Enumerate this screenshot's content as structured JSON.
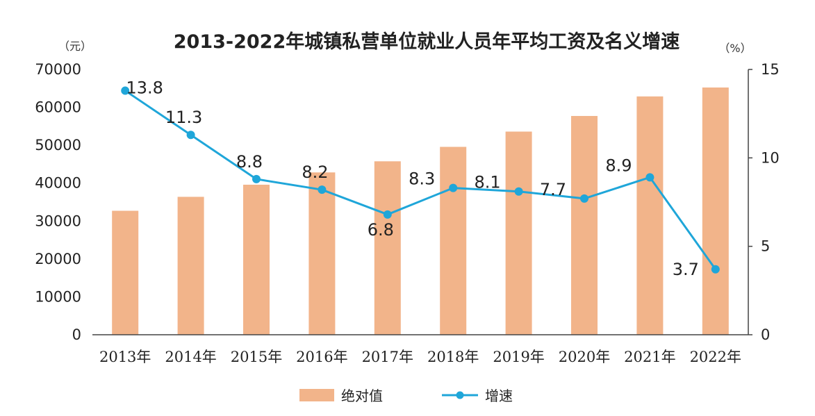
{
  "chart_data": {
    "type": "bar+line",
    "title": "2013-2022年城镇私营单位就业人员年平均工资及名义增速",
    "left_unit": "（元）",
    "right_unit": "（%）",
    "categories": [
      "2013年",
      "2014年",
      "2015年",
      "2016年",
      "2017年",
      "2018年",
      "2019年",
      "2020年",
      "2021年",
      "2022年"
    ],
    "series": [
      {
        "name": "绝对值",
        "type": "bar",
        "axis": "left",
        "color": "#f2b48a",
        "values": [
          32706,
          36390,
          39589,
          42833,
          45761,
          49575,
          53604,
          57727,
          62884,
          65237
        ]
      },
      {
        "name": "增速",
        "type": "line",
        "axis": "right",
        "color": "#1fa6d9",
        "values": [
          13.8,
          11.3,
          8.8,
          8.2,
          6.8,
          8.3,
          8.1,
          7.7,
          8.9,
          3.7
        ],
        "labels": [
          "13.8",
          "11.3",
          "8.8",
          "8.2",
          "6.8",
          "8.3",
          "8.1",
          "7.7",
          "8.9",
          "3.7"
        ]
      }
    ],
    "y_left": {
      "min": 0,
      "max": 70000,
      "ticks": [
        "0",
        "10000",
        "20000",
        "30000",
        "40000",
        "50000",
        "60000",
        "70000"
      ]
    },
    "y_right": {
      "min": 0,
      "max": 15,
      "ticks": [
        "0",
        "5",
        "10",
        "15"
      ]
    },
    "grid": false,
    "legend_position": "bottom"
  }
}
